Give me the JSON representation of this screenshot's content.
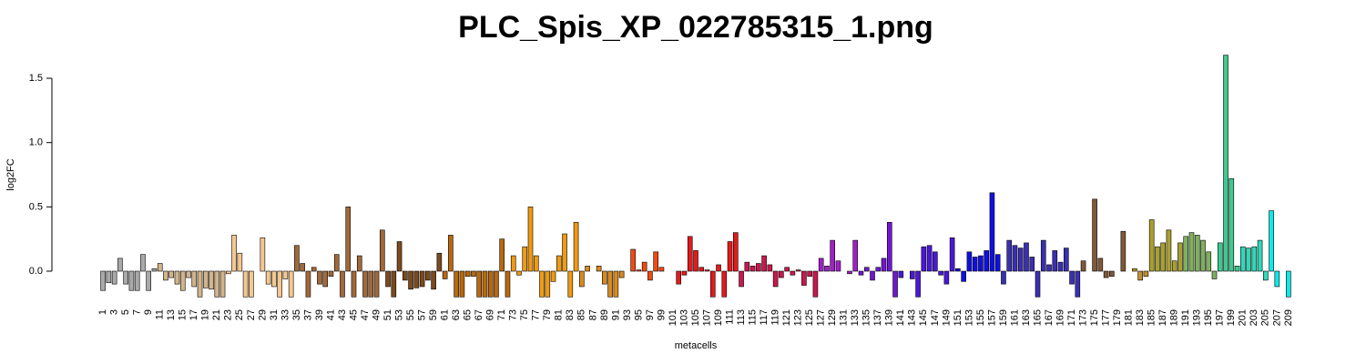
{
  "chart_data": {
    "type": "bar",
    "title": "PLC_Spis_XP_022785315_1.png",
    "xlabel": "metacells",
    "ylabel": "log2FC",
    "categories": [
      "1",
      null,
      "3",
      null,
      "5",
      null,
      "7",
      null,
      "9",
      null,
      "11",
      null,
      "13",
      null,
      "15",
      null,
      "17",
      null,
      "19",
      null,
      "21",
      null,
      "23",
      null,
      "25",
      null,
      "27",
      null,
      "29",
      null,
      "31",
      null,
      "33",
      null,
      "35",
      null,
      "37",
      null,
      "39",
      null,
      "41",
      null,
      "43",
      null,
      "45",
      null,
      "47",
      null,
      "49",
      null,
      "51",
      null,
      "53",
      null,
      "55",
      null,
      "57",
      null,
      "59",
      null,
      "61",
      null,
      "63",
      null,
      "65",
      null,
      "67",
      null,
      "69",
      null,
      "71",
      null,
      "73",
      null,
      "75",
      null,
      "77",
      null,
      "79",
      null,
      "81",
      null,
      "83",
      null,
      "85",
      null,
      "87",
      null,
      "89",
      null,
      "91",
      null,
      "93",
      null,
      "95",
      null,
      "97",
      null,
      "99",
      null,
      "101",
      null,
      "103",
      null,
      "105",
      null,
      "107",
      null,
      "109",
      null,
      "111",
      null,
      "113",
      null,
      "115",
      null,
      "117",
      null,
      "119",
      null,
      "121",
      null,
      "123",
      null,
      "125",
      null,
      "127",
      null,
      "129",
      null,
      "131",
      null,
      "133",
      null,
      "135",
      null,
      "137",
      null,
      "139",
      null,
      "141",
      null,
      "143",
      null,
      "145",
      null,
      "147",
      null,
      "149",
      null,
      "151",
      null,
      "153",
      null,
      "155",
      null,
      "157",
      null,
      "159",
      null,
      "161",
      null,
      "163",
      null,
      "165",
      null,
      "167",
      null,
      "169",
      null,
      "171",
      null,
      "173",
      null,
      "175",
      null,
      "177",
      null,
      "179",
      null,
      "181",
      null,
      "183",
      null,
      "185",
      null,
      "187",
      null,
      "189",
      null,
      "191",
      null,
      "193",
      null,
      "195",
      null,
      "197",
      null,
      "199",
      null,
      "201",
      null,
      "203",
      null,
      "205",
      null,
      "207",
      null,
      "209"
    ],
    "values": [
      -0.15,
      -0.09,
      -0.1,
      0.1,
      -0.1,
      -0.15,
      -0.15,
      0.13,
      -0.15,
      0.02,
      0.06,
      -0.07,
      -0.05,
      -0.1,
      -0.15,
      -0.05,
      -0.12,
      -0.2,
      -0.13,
      -0.14,
      -0.2,
      -0.2,
      -0.02,
      0.28,
      0.14,
      -0.2,
      -0.2,
      0,
      0.26,
      -0.1,
      -0.12,
      -0.2,
      -0.06,
      -0.2,
      0.2,
      0.06,
      -0.2,
      0.03,
      -0.1,
      -0.12,
      -0.04,
      0.13,
      -0.2,
      0.5,
      -0.2,
      0.12,
      -0.2,
      -0.2,
      -0.2,
      0.32,
      -0.12,
      -0.2,
      0.23,
      -0.07,
      -0.14,
      -0.13,
      -0.12,
      -0.07,
      -0.14,
      0.14,
      -0.06,
      0.28,
      -0.2,
      -0.2,
      -0.04,
      -0.04,
      -0.2,
      -0.2,
      -0.2,
      -0.2,
      0.25,
      -0.2,
      0.12,
      -0.03,
      0.19,
      0.5,
      0.12,
      -0.2,
      -0.2,
      -0.08,
      0.12,
      0.29,
      -0.2,
      0.38,
      -0.12,
      0.04,
      0,
      0.04,
      -0.1,
      -0.2,
      -0.2,
      -0.05,
      0,
      0.17,
      0.01,
      0.07,
      -0.07,
      0.15,
      0.03,
      0,
      0,
      -0.1,
      -0.03,
      0.27,
      0.16,
      0.03,
      0.01,
      -0.2,
      0.05,
      -0.2,
      0.23,
      0.3,
      -0.12,
      0.07,
      0.04,
      0.06,
      0.12,
      0.05,
      -0.12,
      -0.05,
      0.03,
      -0.03,
      0.01,
      -0.11,
      -0.04,
      -0.2,
      0.1,
      0.04,
      0.24,
      0.08,
      0,
      -0.02,
      0.24,
      -0.03,
      0.03,
      -0.07,
      0.03,
      0.1,
      0.38,
      -0.2,
      -0.05,
      0,
      -0.06,
      -0.2,
      0.19,
      0.2,
      0.15,
      -0.03,
      -0.1,
      0.26,
      0.02,
      -0.08,
      0.15,
      0.11,
      0.12,
      0.16,
      0.61,
      0.13,
      -0.1,
      0.24,
      0.2,
      0.18,
      0.22,
      0.11,
      -0.2,
      0.24,
      0.05,
      0.16,
      0.07,
      0.18,
      -0.1,
      -0.2,
      0.08,
      0,
      0.56,
      0.1,
      -0.05,
      -0.04,
      0,
      0.31,
      0,
      0.02,
      -0.07,
      -0.04,
      0.4,
      0.19,
      0.22,
      0.32,
      0.08,
      0.22,
      0.27,
      0.3,
      0.28,
      0.24,
      0.15,
      -0.06,
      0.22,
      1.68,
      0.72,
      0.04,
      0.19,
      0.18,
      0.19,
      0.24,
      -0.07,
      0.47,
      -0.12,
      0,
      -0.2
    ],
    "colors": [
      "#a9a9a9",
      "#a9a9a9",
      "#a9a9a9",
      "#a9a9a9",
      "#a9a9a9",
      "#a9a9a9",
      "#a9a9a9",
      "#a9a9a9",
      "#a9a9a9",
      "#a9a9a9",
      "#d2b48c",
      "#d2b48c",
      "#d2b48c",
      "#d2b48c",
      "#d2b48c",
      "#d2b48c",
      "#d2b48c",
      "#d2b48c",
      "#d2b48c",
      "#d2b48c",
      "#d2b48c",
      "#d2b48c",
      "#f5c890",
      "#f5c890",
      "#f5c890",
      "#f5c890",
      "#f5c890",
      "#f5c890",
      "#f5c890",
      "#f5c890",
      "#f5c890",
      "#f5c890",
      "#f5c890",
      "#f5c890",
      "#a0693c",
      "#a0693c",
      "#a0693c",
      "#a0693c",
      "#a0693c",
      "#a0693c",
      "#a0693c",
      "#a0693c",
      "#a0693c",
      "#a0693c",
      "#a0693c",
      "#a0693c",
      "#a0693c",
      "#a0693c",
      "#a0693c",
      "#a0693c",
      "#7b4a1e",
      "#7b4a1e",
      "#7b4a1e",
      "#7b4a1e",
      "#7b4a1e",
      "#7b4a1e",
      "#7b4a1e",
      "#7b4a1e",
      "#7b4a1e",
      "#7b4a1e",
      "#b8680e",
      "#b8680e",
      "#b8680e",
      "#b8680e",
      "#b8680e",
      "#b8680e",
      "#b8680e",
      "#b8680e",
      "#b8680e",
      "#b8680e",
      "#b8680e",
      "#b8680e",
      "#f09a12",
      "#f09a12",
      "#f09a12",
      "#f09a12",
      "#f09a12",
      "#f09a12",
      "#f09a12",
      "#f09a12",
      "#f09a12",
      "#f09a12",
      "#f09a12",
      "#f09a12",
      "#d88a20",
      "#d88a20",
      "#d88a20",
      "#d88a20",
      "#d88a20",
      "#d88a20",
      "#d88a20",
      "#d88a20",
      "#f04a10",
      "#f04a10",
      "#f04a10",
      "#f04a10",
      "#f04a10",
      "#f04a10",
      "#f04a10",
      "#f04a10",
      "#e31a1c",
      "#e31a1c",
      "#e31a1c",
      "#e31a1c",
      "#e31a1c",
      "#e31a1c",
      "#e31a1c",
      "#e31a1c",
      "#e31a1c",
      "#e31a1c",
      "#e31a1c",
      "#e31a1c",
      "#c8184e",
      "#c8184e",
      "#c8184e",
      "#c8184e",
      "#c8184e",
      "#c8184e",
      "#c8184e",
      "#c8184e",
      "#c8184e",
      "#c8184e",
      "#c8184e",
      "#c8184e",
      "#c8184e",
      "#c8184e",
      "#a020c8",
      "#a020c8",
      "#a020c8",
      "#a020c8",
      "#a020c8",
      "#a020c8",
      "#a020c8",
      "#7018d0",
      "#7018d0",
      "#7018d0",
      "#7018d0",
      "#7018d0",
      "#7018d0",
      "#7018d0",
      "#4a18d8",
      "#4a18d8",
      "#4a18d8",
      "#4a18d8",
      "#4a18d8",
      "#4a18d8",
      "#4a18d8",
      "#4a18d8",
      "#4a18d8",
      "#4a18d8",
      "#1010e0",
      "#1010e0",
      "#1010e0",
      "#1010e0",
      "#1010e0",
      "#1010e0",
      "#1010e0",
      "#1010e0",
      "#3a30b0",
      "#3a30b0",
      "#3a30b0",
      "#3a30b0",
      "#3a30b0",
      "#3a30b0",
      "#3a30b0",
      "#3a30b0",
      "#3a30b0",
      "#3a30b0",
      "#3a30b0",
      "#3a30b0",
      "#3a30b0",
      "#3a30b0",
      "#80583a",
      "#80583a",
      "#80583a",
      "#80583a",
      "#80583a",
      "#80583a",
      "#80583a",
      "#80583a",
      "#c09030",
      "#c09030",
      "#c09030",
      "#c09030",
      "#a8a030",
      "#a8a030",
      "#a8a030",
      "#a8a030",
      "#a8a030",
      "#a8a030",
      "#80b060",
      "#80b060",
      "#80b060",
      "#80b060",
      "#80b060",
      "#80b060",
      "#40c890",
      "#40c890",
      "#40c890",
      "#40c890",
      "#30d8b8",
      "#30d8b8",
      "#30d8b8",
      "#30d8b8",
      "#30d8b8",
      "#10e8e8",
      "#10e8e8",
      "#10e8e8",
      "#10e8e8"
    ],
    "ylim": [
      -0.3,
      1.75
    ],
    "yticks": [
      {
        "value": 0,
        "label": "0.0"
      },
      {
        "value": 0.5,
        "label": "0.5"
      },
      {
        "value": 1,
        "label": "1.0"
      },
      {
        "value": 1.5,
        "label": "1.5"
      }
    ]
  }
}
